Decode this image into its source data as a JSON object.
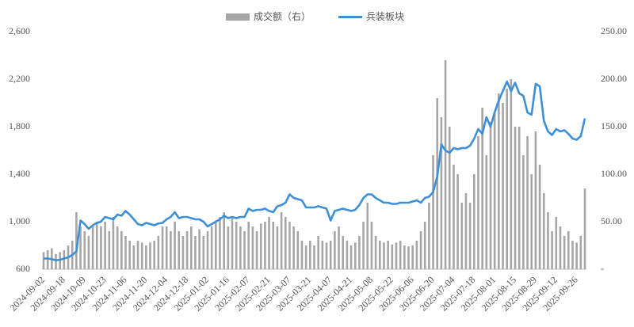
{
  "chart_data": {
    "type": "bar-line",
    "categories": [
      "2024-09-02",
      null,
      null,
      null,
      null,
      "2024-09-18",
      null,
      null,
      null,
      null,
      "2024-10-09",
      null,
      null,
      null,
      null,
      "2024-10-23",
      null,
      null,
      null,
      null,
      "2024-11-06",
      null,
      null,
      null,
      null,
      "2024-11-20",
      null,
      null,
      null,
      null,
      "2024-12-04",
      null,
      null,
      null,
      null,
      "2024-12-18",
      null,
      null,
      null,
      null,
      "2025-01-02",
      null,
      null,
      null,
      null,
      "2025-01-16",
      null,
      null,
      null,
      null,
      "2025-02-07",
      null,
      null,
      null,
      null,
      "2025-02-21",
      null,
      null,
      null,
      null,
      "2025-03-07",
      null,
      null,
      null,
      null,
      "2025-03-21",
      null,
      null,
      null,
      null,
      "2025-04-07",
      null,
      null,
      null,
      null,
      "2025-04-21",
      null,
      null,
      null,
      null,
      "2025-05-08",
      null,
      null,
      null,
      null,
      "2025-05-22",
      null,
      null,
      null,
      null,
      "2025-06-06",
      null,
      null,
      null,
      null,
      "2025-06-20",
      null,
      null,
      null,
      null,
      "2025-07-04",
      null,
      null,
      null,
      null,
      "2025-07-18",
      null,
      null,
      null,
      null,
      "2025-08-01",
      null,
      null,
      null,
      null,
      "2025-08-15",
      null,
      null,
      null,
      null,
      "2025-08-29",
      null,
      null,
      null,
      null,
      "2025-09-12",
      null,
      null,
      null,
      null,
      "2025-09-26",
      null,
      null
    ],
    "series": [
      {
        "name": "成交额（右）",
        "color": "#a6a6a6",
        "axis": "y2",
        "type": "bar",
        "values": [
          18,
          20,
          22,
          16,
          18,
          20,
          25,
          30,
          60,
          45,
          40,
          35,
          45,
          50,
          45,
          50,
          40,
          55,
          45,
          40,
          35,
          30,
          25,
          30,
          28,
          25,
          28,
          30,
          35,
          45,
          45,
          40,
          50,
          40,
          35,
          40,
          45,
          35,
          42,
          35,
          40,
          45,
          50,
          55,
          60,
          45,
          55,
          50,
          45,
          40,
          50,
          45,
          40,
          48,
          50,
          55,
          50,
          45,
          60,
          55,
          50,
          45,
          40,
          30,
          25,
          30,
          25,
          35,
          30,
          28,
          30,
          40,
          45,
          35,
          30,
          25,
          28,
          35,
          50,
          70,
          50,
          35,
          30,
          28,
          30,
          26,
          28,
          30,
          25,
          24,
          25,
          30,
          40,
          50,
          70,
          120,
          180,
          160,
          220,
          150,
          110,
          100,
          70,
          80,
          70,
          100,
          140,
          170,
          120,
          155,
          165,
          185,
          175,
          190,
          200,
          150,
          150,
          120,
          140,
          100,
          145,
          110,
          80,
          60,
          40,
          55,
          45,
          35,
          40,
          30,
          28,
          35,
          85
        ]
      },
      {
        "name": "兵装板块",
        "color": "#3d8fd6",
        "axis": "y",
        "type": "line",
        "values": [
          690,
          690,
          685,
          675,
          680,
          690,
          700,
          720,
          750,
          1010,
          980,
          940,
          970,
          990,
          1000,
          1040,
          1030,
          1020,
          1060,
          1050,
          1090,
          1060,
          1020,
          980,
          970,
          990,
          980,
          970,
          985,
          990,
          1020,
          1040,
          1080,
          1030,
          1040,
          1040,
          1030,
          1020,
          1020,
          1000,
          960,
          980,
          1000,
          1020,
          1050,
          1030,
          1040,
          1030,
          1040,
          1040,
          1110,
          1090,
          1100,
          1100,
          1110,
          1090,
          1080,
          1130,
          1140,
          1160,
          1230,
          1200,
          1190,
          1180,
          1120,
          1120,
          1120,
          1130,
          1120,
          1110,
          1010,
          1090,
          1100,
          1110,
          1100,
          1090,
          1100,
          1140,
          1200,
          1230,
          1230,
          1200,
          1180,
          1160,
          1160,
          1150,
          1150,
          1160,
          1160,
          1160,
          1170,
          1180,
          1160,
          1200,
          1210,
          1250,
          1380,
          1650,
          1600,
          1580,
          1620,
          1610,
          1620,
          1620,
          1640,
          1700,
          1780,
          1740,
          1880,
          1800,
          1920,
          2020,
          2100,
          2180,
          2100,
          2170,
          2080,
          2060,
          1920,
          1900,
          2160,
          2140,
          1850,
          1760,
          1730,
          1780,
          1760,
          1770,
          1740,
          1700,
          1690,
          1720,
          1870
        ]
      }
    ],
    "ylim": [
      600,
      2600
    ],
    "yticks": [
      600,
      {
        "value": 1000,
        "label": "1,000"
      },
      {
        "value": 1400,
        "label": "1,400"
      },
      {
        "value": 1800,
        "label": "1,800"
      },
      {
        "value": 2200,
        "label": "2,200"
      },
      {
        "value": 2600,
        "label": "2,600"
      }
    ],
    "y2lim": [
      0,
      250
    ],
    "y2ticks": [
      {
        "value": 0,
        "label": "-"
      },
      {
        "value": 50,
        "label": "50.00"
      },
      {
        "value": 100,
        "label": "100.00"
      },
      {
        "value": 150,
        "label": "150.00"
      },
      {
        "value": 200,
        "label": "200.00"
      },
      {
        "value": 250,
        "label": "250.00"
      }
    ],
    "grid": false,
    "legend": "top"
  }
}
